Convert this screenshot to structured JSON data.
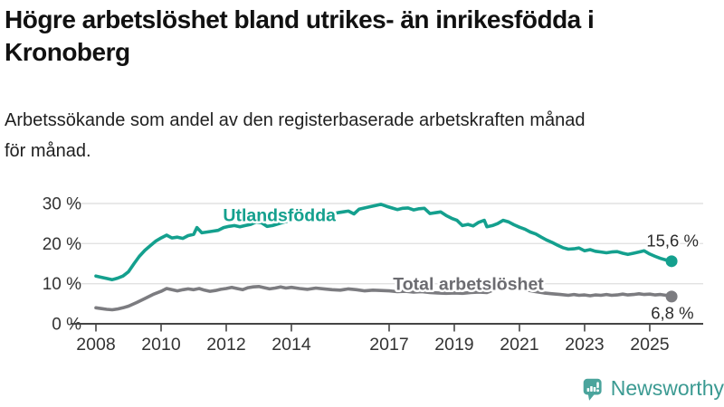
{
  "header": {
    "title_lines": [
      "Högre arbetslöshet bland utrikes- än inrikesfödda i",
      "Kronoberg"
    ],
    "subtitle_lines": [
      "Arbetssökande som andel av den registerbaserade arbetskraften månad",
      "för månad."
    ]
  },
  "footer": {
    "brand": "Newsworthy",
    "brand_color": "#3b9a92",
    "icon_color": "#4aa49c",
    "icon": "bar-chart-speech-bubble-icon"
  },
  "chart_data": {
    "type": "line",
    "unit": "%",
    "grid": true,
    "legend_position": "inline-labels",
    "xlim": [
      2007.25,
      2026.64
    ],
    "ylim": [
      0,
      30
    ],
    "colors": {
      "axis": "#454545",
      "grid": "#e2e2e2",
      "tick_label": "#333333",
      "annotation": "#2b2b2b"
    },
    "y_ticks": [
      {
        "value": 0,
        "label": "0 %"
      },
      {
        "value": 10,
        "label": "10 %"
      },
      {
        "value": 20,
        "label": "20 %"
      },
      {
        "value": 30,
        "label": "30 %"
      }
    ],
    "x_ticks": [
      {
        "value": 2008,
        "label": "2008"
      },
      {
        "value": 2010,
        "label": "2010"
      },
      {
        "value": 2012,
        "label": "2012"
      },
      {
        "value": 2014,
        "label": "2014"
      },
      {
        "value": 2017,
        "label": "2017"
      },
      {
        "value": 2019,
        "label": "2019"
      },
      {
        "value": 2021,
        "label": "2021"
      },
      {
        "value": 2023,
        "label": "2023"
      },
      {
        "value": 2025,
        "label": "2025"
      }
    ],
    "series": [
      {
        "id": "utlandsfodda",
        "name": "Utlandsfödda",
        "color": "#14a08e",
        "label": {
          "text": "Utlandsfödda",
          "x": 2011.9,
          "y": 27.1
        },
        "end_label": {
          "text": "15,6 %",
          "x": 2026.5,
          "y": 20.7,
          "anchor": "end"
        },
        "end_dot": true,
        "points": [
          [
            2008.0,
            11.9
          ],
          [
            2008.17,
            11.6
          ],
          [
            2008.33,
            11.3
          ],
          [
            2008.5,
            11.0
          ],
          [
            2008.67,
            11.4
          ],
          [
            2008.83,
            11.9
          ],
          [
            2009.0,
            13.0
          ],
          [
            2009.17,
            15.0
          ],
          [
            2009.33,
            16.8
          ],
          [
            2009.5,
            18.3
          ],
          [
            2009.67,
            19.5
          ],
          [
            2009.83,
            20.6
          ],
          [
            2010.0,
            21.4
          ],
          [
            2010.17,
            22.1
          ],
          [
            2010.33,
            21.4
          ],
          [
            2010.5,
            21.6
          ],
          [
            2010.67,
            21.3
          ],
          [
            2010.83,
            22.0
          ],
          [
            2011.0,
            22.3
          ],
          [
            2011.1,
            24.0
          ],
          [
            2011.25,
            22.7
          ],
          [
            2011.42,
            22.9
          ],
          [
            2011.58,
            23.1
          ],
          [
            2011.75,
            23.3
          ],
          [
            2011.92,
            24.0
          ],
          [
            2012.08,
            24.3
          ],
          [
            2012.25,
            24.5
          ],
          [
            2012.42,
            24.2
          ],
          [
            2012.58,
            24.5
          ],
          [
            2012.75,
            24.8
          ],
          [
            2012.92,
            25.4
          ],
          [
            2013.08,
            25.2
          ],
          [
            2013.25,
            24.3
          ],
          [
            2013.42,
            24.5
          ],
          [
            2013.58,
            24.9
          ],
          [
            2013.75,
            25.3
          ],
          [
            2013.92,
            25.7
          ],
          [
            2014.08,
            26.1
          ],
          [
            2014.25,
            26.5
          ],
          [
            2014.42,
            26.9
          ],
          [
            2014.58,
            27.2
          ],
          [
            2014.75,
            27.0
          ],
          [
            2014.92,
            27.3
          ],
          [
            2015.08,
            27.1
          ],
          [
            2015.25,
            27.4
          ],
          [
            2015.42,
            27.7
          ],
          [
            2015.58,
            27.9
          ],
          [
            2015.75,
            28.1
          ],
          [
            2015.92,
            27.4
          ],
          [
            2016.08,
            28.6
          ],
          [
            2016.25,
            28.9
          ],
          [
            2016.42,
            29.2
          ],
          [
            2016.58,
            29.5
          ],
          [
            2016.75,
            29.8
          ],
          [
            2016.92,
            29.3
          ],
          [
            2017.08,
            28.9
          ],
          [
            2017.25,
            28.5
          ],
          [
            2017.42,
            28.8
          ],
          [
            2017.58,
            28.9
          ],
          [
            2017.75,
            28.4
          ],
          [
            2017.92,
            28.7
          ],
          [
            2018.08,
            28.8
          ],
          [
            2018.25,
            27.5
          ],
          [
            2018.42,
            27.7
          ],
          [
            2018.58,
            27.9
          ],
          [
            2018.75,
            27.0
          ],
          [
            2018.92,
            26.3
          ],
          [
            2019.08,
            25.8
          ],
          [
            2019.25,
            24.5
          ],
          [
            2019.42,
            24.8
          ],
          [
            2019.58,
            24.4
          ],
          [
            2019.75,
            25.3
          ],
          [
            2019.92,
            25.8
          ],
          [
            2020.0,
            24.2
          ],
          [
            2020.17,
            24.5
          ],
          [
            2020.33,
            25.0
          ],
          [
            2020.5,
            25.8
          ],
          [
            2020.67,
            25.4
          ],
          [
            2020.83,
            24.7
          ],
          [
            2021.0,
            24.1
          ],
          [
            2021.17,
            23.6
          ],
          [
            2021.33,
            22.9
          ],
          [
            2021.5,
            22.4
          ],
          [
            2021.67,
            21.6
          ],
          [
            2021.83,
            20.9
          ],
          [
            2022.0,
            20.3
          ],
          [
            2022.17,
            19.6
          ],
          [
            2022.33,
            19.0
          ],
          [
            2022.5,
            18.6
          ],
          [
            2022.67,
            18.7
          ],
          [
            2022.83,
            18.9
          ],
          [
            2023.0,
            18.2
          ],
          [
            2023.17,
            18.5
          ],
          [
            2023.33,
            18.1
          ],
          [
            2023.5,
            17.9
          ],
          [
            2023.67,
            17.7
          ],
          [
            2023.83,
            17.9
          ],
          [
            2024.0,
            18.0
          ],
          [
            2024.17,
            17.6
          ],
          [
            2024.33,
            17.3
          ],
          [
            2024.5,
            17.6
          ],
          [
            2024.67,
            17.9
          ],
          [
            2024.83,
            18.2
          ],
          [
            2025.0,
            17.4
          ],
          [
            2025.17,
            16.8
          ],
          [
            2025.33,
            16.3
          ],
          [
            2025.5,
            15.9
          ],
          [
            2025.67,
            15.6
          ]
        ]
      },
      {
        "id": "total-arbetsloshet",
        "name": "Total arbetslöshet",
        "color": "#7c7c80",
        "label_color": "#6c6c71",
        "label": {
          "text": "Total arbetslöshet",
          "x": 2017.12,
          "y": 9.9
        },
        "end_label": {
          "text": "6,8 %",
          "x": 2026.35,
          "y": 2.7,
          "anchor": "end"
        },
        "end_dot": true,
        "points": [
          [
            2008.0,
            4.0
          ],
          [
            2008.17,
            3.8
          ],
          [
            2008.33,
            3.6
          ],
          [
            2008.5,
            3.5
          ],
          [
            2008.67,
            3.7
          ],
          [
            2008.83,
            4.0
          ],
          [
            2009.0,
            4.4
          ],
          [
            2009.25,
            5.3
          ],
          [
            2009.5,
            6.3
          ],
          [
            2009.75,
            7.3
          ],
          [
            2010.0,
            8.1
          ],
          [
            2010.17,
            8.8
          ],
          [
            2010.33,
            8.5
          ],
          [
            2010.5,
            8.2
          ],
          [
            2010.67,
            8.5
          ],
          [
            2010.83,
            8.7
          ],
          [
            2011.0,
            8.5
          ],
          [
            2011.17,
            8.8
          ],
          [
            2011.33,
            8.4
          ],
          [
            2011.5,
            8.1
          ],
          [
            2011.67,
            8.3
          ],
          [
            2011.83,
            8.6
          ],
          [
            2012.0,
            8.8
          ],
          [
            2012.17,
            9.1
          ],
          [
            2012.33,
            8.8
          ],
          [
            2012.5,
            8.5
          ],
          [
            2012.67,
            9.0
          ],
          [
            2012.83,
            9.2
          ],
          [
            2013.0,
            9.3
          ],
          [
            2013.17,
            9.0
          ],
          [
            2013.33,
            8.7
          ],
          [
            2013.5,
            8.9
          ],
          [
            2013.67,
            9.2
          ],
          [
            2013.83,
            8.9
          ],
          [
            2014.0,
            9.1
          ],
          [
            2014.25,
            8.8
          ],
          [
            2014.5,
            8.6
          ],
          [
            2014.75,
            8.9
          ],
          [
            2015.0,
            8.7
          ],
          [
            2015.25,
            8.5
          ],
          [
            2015.5,
            8.4
          ],
          [
            2015.75,
            8.7
          ],
          [
            2016.0,
            8.5
          ],
          [
            2016.25,
            8.2
          ],
          [
            2016.5,
            8.4
          ],
          [
            2016.75,
            8.3
          ],
          [
            2017.0,
            8.2
          ],
          [
            2017.25,
            8.0
          ],
          [
            2017.5,
            8.1
          ],
          [
            2017.75,
            7.9
          ],
          [
            2018.0,
            8.0
          ],
          [
            2018.25,
            7.8
          ],
          [
            2018.5,
            7.7
          ],
          [
            2018.75,
            7.6
          ],
          [
            2019.0,
            7.7
          ],
          [
            2019.25,
            7.6
          ],
          [
            2019.5,
            7.8
          ],
          [
            2019.75,
            7.9
          ],
          [
            2020.0,
            7.8
          ],
          [
            2020.25,
            8.6
          ],
          [
            2020.5,
            9.2
          ],
          [
            2020.75,
            9.0
          ],
          [
            2021.0,
            8.7
          ],
          [
            2021.25,
            8.4
          ],
          [
            2021.5,
            8.0
          ],
          [
            2021.75,
            7.7
          ],
          [
            2022.0,
            7.5
          ],
          [
            2022.25,
            7.3
          ],
          [
            2022.5,
            7.1
          ],
          [
            2022.67,
            7.3
          ],
          [
            2022.83,
            7.1
          ],
          [
            2023.0,
            7.2
          ],
          [
            2023.17,
            7.0
          ],
          [
            2023.33,
            7.2
          ],
          [
            2023.5,
            7.1
          ],
          [
            2023.67,
            7.3
          ],
          [
            2023.83,
            7.1
          ],
          [
            2024.0,
            7.2
          ],
          [
            2024.17,
            7.4
          ],
          [
            2024.33,
            7.2
          ],
          [
            2024.5,
            7.3
          ],
          [
            2024.67,
            7.5
          ],
          [
            2024.83,
            7.3
          ],
          [
            2025.0,
            7.4
          ],
          [
            2025.17,
            7.2
          ],
          [
            2025.33,
            7.3
          ],
          [
            2025.5,
            7.1
          ],
          [
            2025.67,
            6.8
          ]
        ]
      }
    ]
  }
}
